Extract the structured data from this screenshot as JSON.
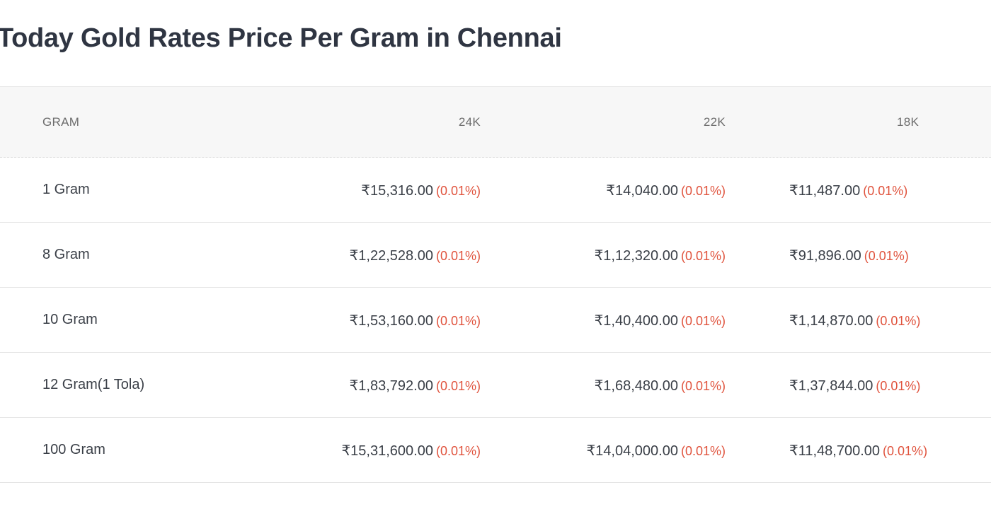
{
  "page": {
    "title": "Today Gold Rates Price Per Gram in Chennai"
  },
  "colors": {
    "title": "#2f3542",
    "header_text": "#6d6d6d",
    "header_bg": "#f7f7f7",
    "change": "#e0533d"
  },
  "table": {
    "headers": {
      "gram": "GRAM",
      "k24": "24K",
      "k22": "22K",
      "k18": "18K"
    },
    "rows": [
      {
        "gram": "1 Gram",
        "k24": {
          "price": "₹15,316.00",
          "change": "(0.01%)"
        },
        "k22": {
          "price": "₹14,040.00",
          "change": "(0.01%)"
        },
        "k18": {
          "price": "₹11,487.00",
          "change": "(0.01%)"
        }
      },
      {
        "gram": "8 Gram",
        "k24": {
          "price": "₹1,22,528.00",
          "change": "(0.01%)"
        },
        "k22": {
          "price": "₹1,12,320.00",
          "change": "(0.01%)"
        },
        "k18": {
          "price": "₹91,896.00",
          "change": "(0.01%)"
        }
      },
      {
        "gram": "10 Gram",
        "k24": {
          "price": "₹1,53,160.00",
          "change": "(0.01%)"
        },
        "k22": {
          "price": "₹1,40,400.00",
          "change": "(0.01%)"
        },
        "k18": {
          "price": "₹1,14,870.00",
          "change": "(0.01%)"
        }
      },
      {
        "gram": "12 Gram(1 Tola)",
        "k24": {
          "price": "₹1,83,792.00",
          "change": "(0.01%)"
        },
        "k22": {
          "price": "₹1,68,480.00",
          "change": "(0.01%)"
        },
        "k18": {
          "price": "₹1,37,844.00",
          "change": "(0.01%)"
        }
      },
      {
        "gram": "100 Gram",
        "k24": {
          "price": "₹15,31,600.00",
          "change": "(0.01%)"
        },
        "k22": {
          "price": "₹14,04,000.00",
          "change": "(0.01%)"
        },
        "k18": {
          "price": "₹11,48,700.00",
          "change": "(0.01%)"
        }
      }
    ]
  }
}
